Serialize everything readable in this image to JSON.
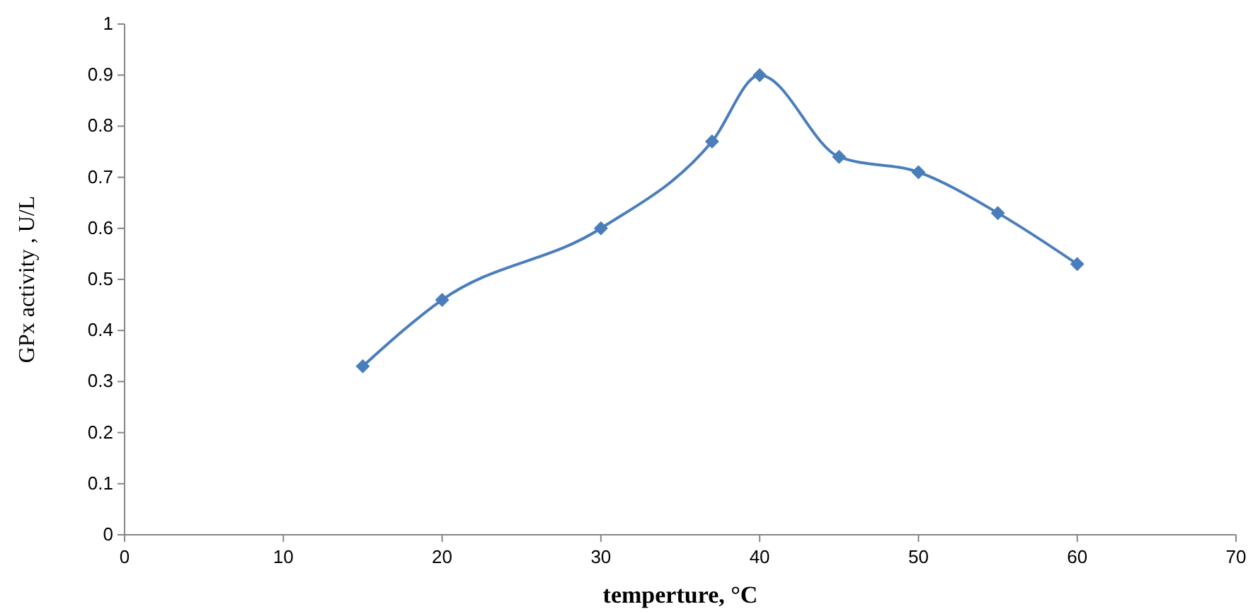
{
  "chart_data": {
    "type": "line",
    "xlabel": "temperture, °C",
    "ylabel": "GPx activity  , U/L",
    "x": [
      15,
      20,
      30,
      37,
      40,
      45,
      50,
      55,
      60
    ],
    "series": [
      {
        "color": "#4a7ebb",
        "values": [
          0.33,
          0.46,
          0.6,
          0.77,
          0.9,
          0.74,
          0.71,
          0.63,
          0.53
        ]
      }
    ],
    "xlim": [
      0,
      70
    ],
    "xticks": [
      0,
      10,
      20,
      30,
      40,
      50,
      60,
      70
    ],
    "ylim": [
      0,
      1
    ],
    "yticks": [
      0,
      {
        "value": 0.1,
        "label": "0.1"
      },
      {
        "value": 0.2,
        "label": "0.2"
      },
      {
        "value": 0.3,
        "label": "0.3"
      },
      {
        "value": 0.4,
        "label": "0.4"
      },
      {
        "value": 0.5,
        "label": "0.5"
      },
      {
        "value": 0.6,
        "label": "0.6"
      },
      {
        "value": 0.7,
        "label": "0.7"
      },
      {
        "value": 0.8,
        "label": "0.8"
      },
      {
        "value": 0.9,
        "label": "0.9"
      },
      1
    ],
    "marker": "diamond",
    "line_style": "solid",
    "grid": false
  }
}
